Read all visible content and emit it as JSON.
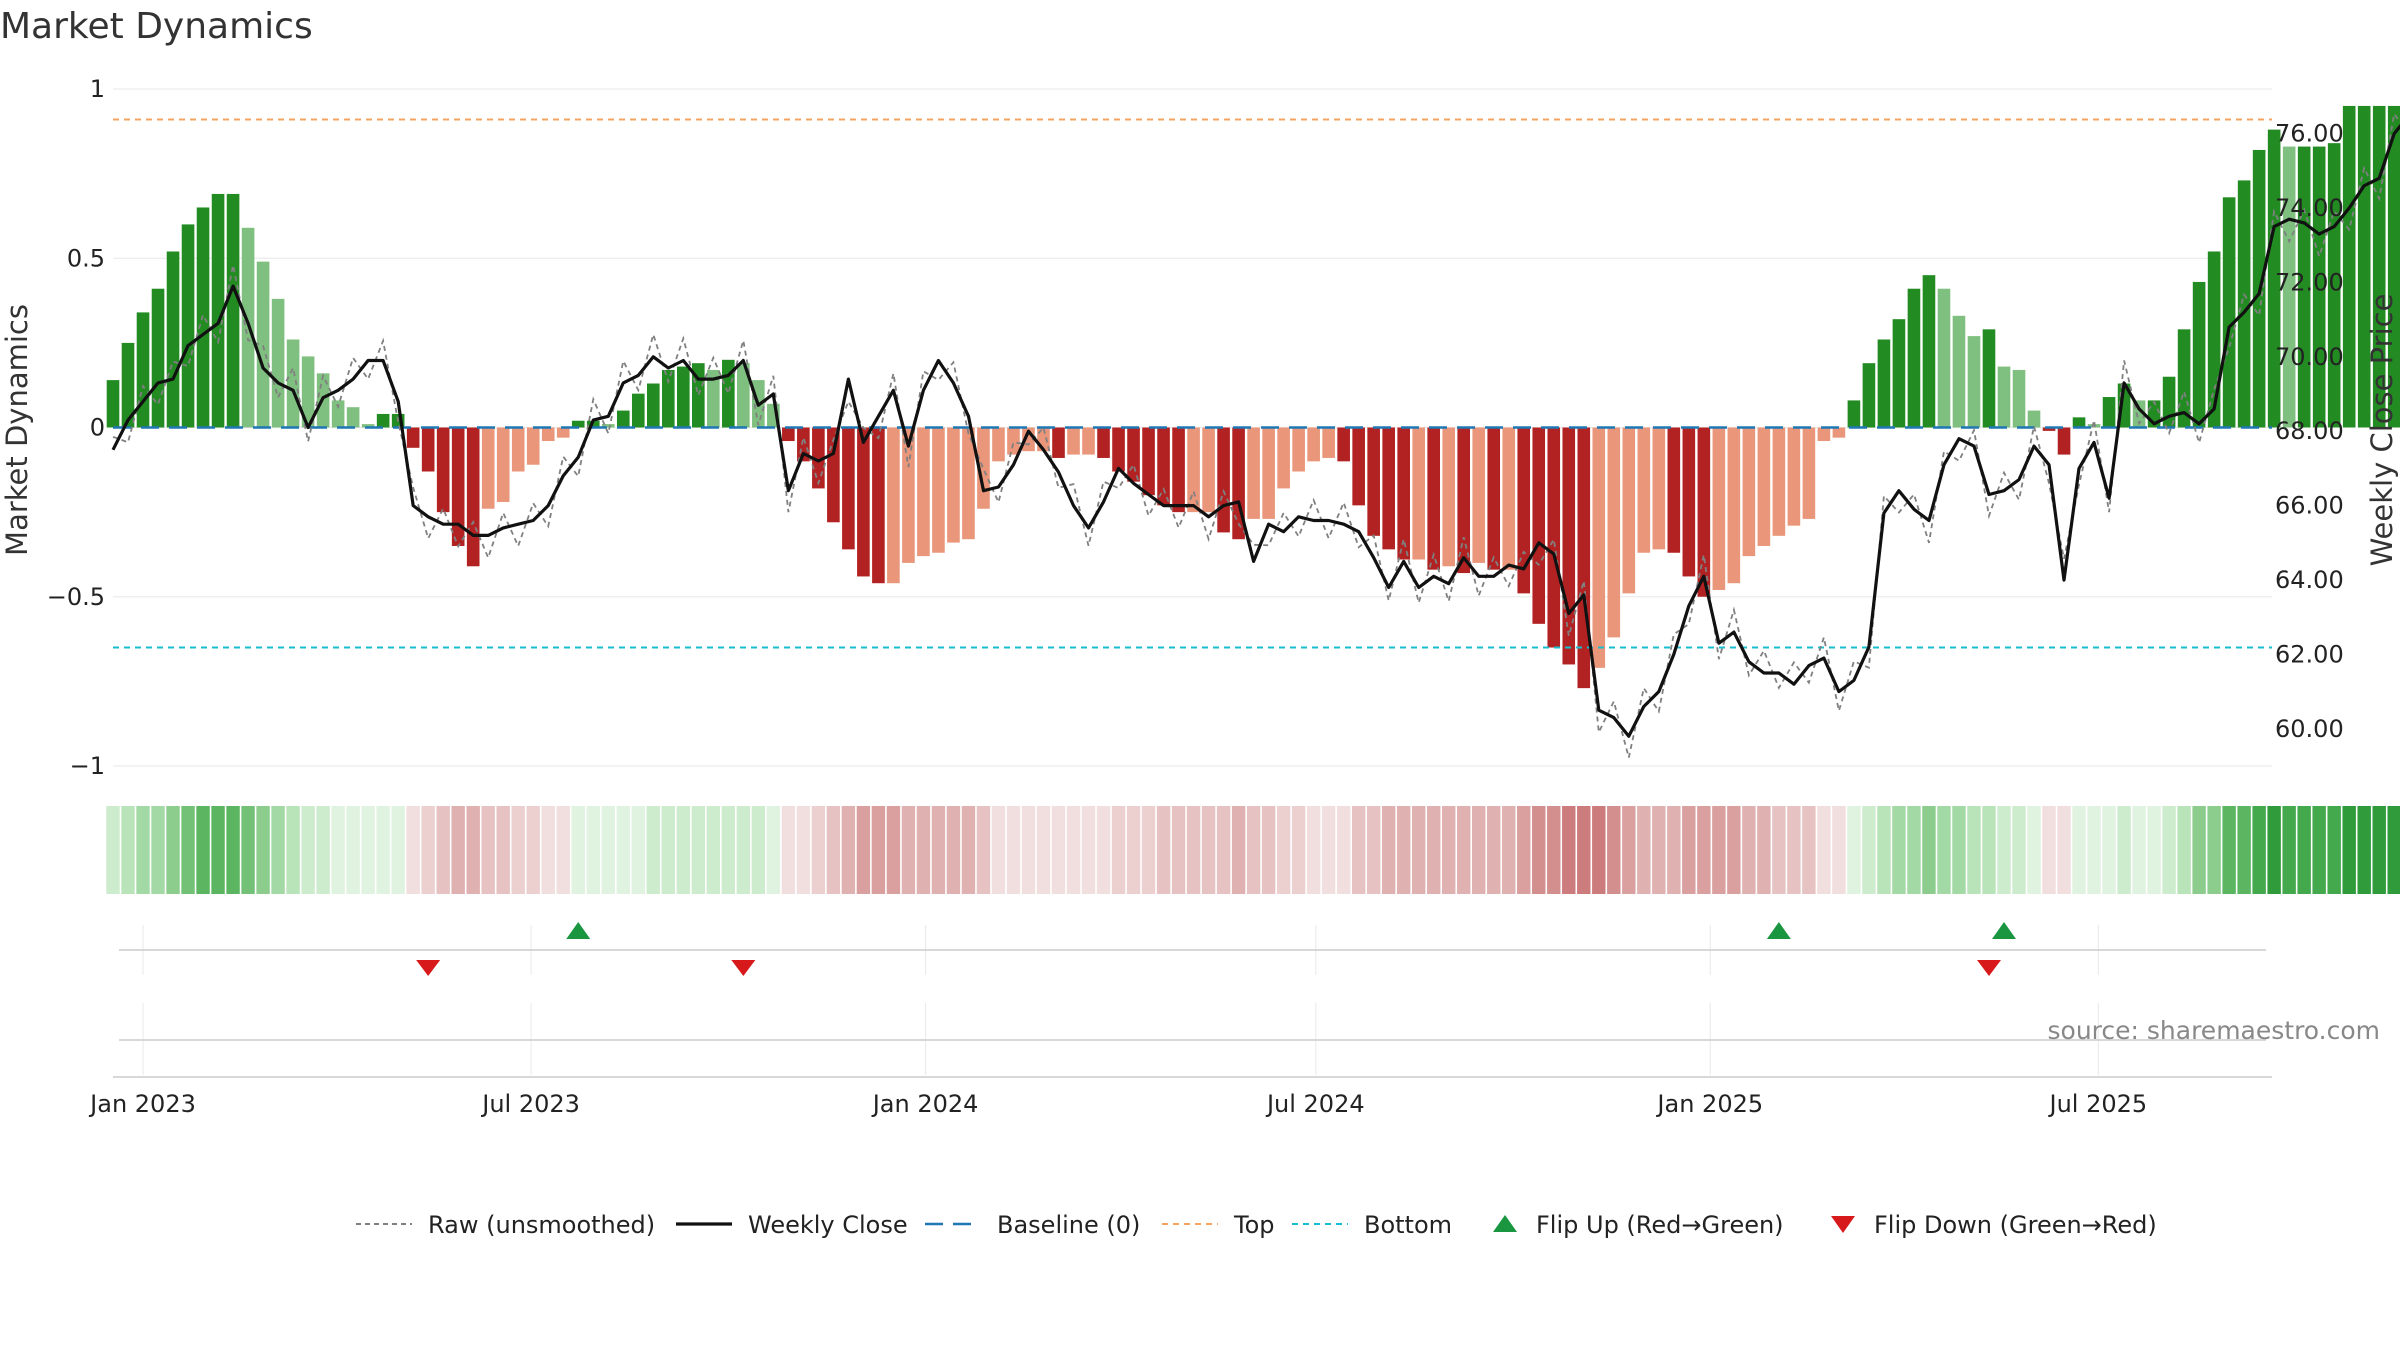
{
  "title": "Market Dynamics",
  "source": "source: sharemaestro.com",
  "colors": {
    "green_strong": "#228B22",
    "green_light": "#7FBF7F",
    "red_strong": "#B22222",
    "red_light": "#E9967A",
    "close_line": "#111111",
    "raw_line": "#808080",
    "baseline": "#1f77b4",
    "top": "#F4A460",
    "bottom": "#17becf",
    "flip_up": "#1a9641",
    "flip_down": "#d7191c"
  },
  "chart_data": {
    "type": "bar",
    "title": "Market Dynamics",
    "ylabel_left": "Market Dynamics",
    "ylabel_right": "Weekly Close Price",
    "ylim_left": [
      -1,
      1
    ],
    "ylim_right": [
      59.0,
      77.2
    ],
    "y_ticks_left": [
      "1",
      "0.5",
      "0",
      "−0.5",
      "−1"
    ],
    "y_tick_values_left": [
      1,
      0.5,
      0,
      -0.5,
      -1
    ],
    "y_ticks_right": [
      "76.00",
      "74.00",
      "72.00",
      "70.00",
      "68.00",
      "66.00",
      "64.00",
      "62.00",
      "60.00"
    ],
    "y_tick_values_right": [
      76,
      74,
      72,
      70,
      68,
      66,
      64,
      62,
      60
    ],
    "x_ticks": [
      "Jan 2023",
      "Jul 2023",
      "Jan 2024",
      "Jul 2024",
      "Jan 2025",
      "Jul 2025"
    ],
    "x_tick_dates": [
      "2023-01-01",
      "2023-07-01",
      "2024-01-01",
      "2024-07-01",
      "2025-01-01",
      "2025-07-01"
    ],
    "x_range": [
      "2022-12-18",
      "2025-09-20"
    ],
    "first_week": "2022-12-18",
    "top_level": 0.91,
    "bottom_level": -0.65,
    "baseline": 0,
    "legend": [
      "Raw (unsmoothed)",
      "Weekly Close",
      "Baseline (0)",
      "Top",
      "Bottom",
      "Flip Up (Red→Green)",
      "Flip Down (Green→Red)"
    ],
    "legend_position": "bottom",
    "dynamics": [
      0.14,
      0.25,
      0.34,
      0.41,
      0.52,
      0.6,
      0.65,
      0.69,
      0.69,
      0.59,
      0.49,
      0.38,
      0.26,
      0.21,
      0.16,
      0.08,
      0.06,
      0.01,
      0.04,
      0.04,
      -0.06,
      -0.13,
      -0.25,
      -0.35,
      -0.41,
      -0.24,
      -0.22,
      -0.13,
      -0.11,
      -0.04,
      -0.03,
      0.02,
      0.02,
      0.01,
      0.05,
      0.1,
      0.13,
      0.17,
      0.18,
      0.19,
      0.17,
      0.2,
      0.19,
      0.14,
      0.07,
      -0.04,
      -0.1,
      -0.18,
      -0.28,
      -0.36,
      -0.44,
      -0.46,
      -0.46,
      -0.4,
      -0.38,
      -0.37,
      -0.34,
      -0.33,
      -0.24,
      -0.1,
      -0.08,
      -0.07,
      -0.07,
      -0.09,
      -0.08,
      -0.08,
      -0.09,
      -0.13,
      -0.16,
      -0.2,
      -0.23,
      -0.25,
      -0.25,
      -0.25,
      -0.31,
      -0.33,
      -0.27,
      -0.27,
      -0.18,
      -0.13,
      -0.1,
      -0.09,
      -0.1,
      -0.23,
      -0.32,
      -0.36,
      -0.39,
      -0.39,
      -0.42,
      -0.41,
      -0.43,
      -0.4,
      -0.42,
      -0.42,
      -0.49,
      -0.58,
      -0.65,
      -0.7,
      -0.77,
      -0.71,
      -0.62,
      -0.49,
      -0.37,
      -0.36,
      -0.37,
      -0.44,
      -0.5,
      -0.48,
      -0.46,
      -0.38,
      -0.35,
      -0.32,
      -0.29,
      -0.27,
      -0.04,
      -0.03,
      0.08,
      0.19,
      0.26,
      0.32,
      0.41,
      0.45,
      0.41,
      0.33,
      0.27,
      0.29,
      0.18,
      0.17,
      0.05,
      -0.01,
      -0.08,
      0.03,
      0.01,
      0.09,
      0.13,
      0.08,
      0.08,
      0.15,
      0.29,
      0.43,
      0.52,
      0.68,
      0.73,
      0.82,
      0.88,
      0.83,
      0.83,
      0.83,
      0.84,
      0.95,
      0.95,
      0.95,
      0.95
    ],
    "close": [
      67.5,
      68.3,
      68.8,
      69.3,
      69.4,
      70.3,
      70.6,
      70.9,
      71.9,
      70.9,
      69.7,
      69.3,
      69.1,
      68.1,
      68.9,
      69.1,
      69.4,
      69.9,
      69.9,
      68.8,
      66.0,
      65.7,
      65.5,
      65.5,
      65.2,
      65.2,
      65.4,
      65.5,
      65.6,
      66.0,
      66.8,
      67.3,
      68.3,
      68.4,
      69.3,
      69.5,
      70.0,
      69.7,
      69.9,
      69.4,
      69.4,
      69.5,
      69.9,
      68.7,
      69.0,
      66.4,
      67.4,
      67.2,
      67.4,
      69.4,
      67.7,
      68.4,
      69.1,
      67.6,
      69.1,
      69.9,
      69.3,
      68.4,
      66.4,
      66.5,
      67.1,
      68.0,
      67.5,
      66.9,
      66.0,
      65.4,
      66.1,
      67.0,
      66.6,
      66.3,
      66.0,
      66.0,
      66.0,
      65.7,
      66.0,
      66.1,
      64.5,
      65.5,
      65.3,
      65.7,
      65.6,
      65.6,
      65.5,
      65.3,
      64.6,
      63.8,
      64.5,
      63.8,
      64.1,
      63.9,
      64.6,
      64.1,
      64.1,
      64.4,
      64.3,
      65.0,
      64.7,
      63.1,
      63.6,
      60.5,
      60.3,
      59.8,
      60.6,
      61.0,
      62.0,
      63.3,
      64.1,
      62.3,
      62.6,
      61.8,
      61.5,
      61.5,
      61.2,
      61.7,
      61.9,
      61.0,
      61.3,
      62.2,
      65.8,
      66.4,
      65.9,
      65.6,
      67.1,
      67.8,
      67.6,
      66.3,
      66.4,
      66.7,
      67.6,
      67.1,
      64.0,
      67.0,
      67.7,
      66.2,
      69.3,
      68.6,
      68.2,
      68.4,
      68.5,
      68.2,
      68.6,
      70.8,
      71.2,
      71.7,
      73.5,
      73.7,
      73.6,
      73.3,
      73.5,
      74.0,
      74.6,
      74.8,
      76.0,
      76.5,
      76.3,
      76.5
    ]
  },
  "heat_strip": {
    "colors": [
      "#73c178",
      "#76c27a",
      "#79c47d",
      "#7dc680",
      "#80c883",
      "#83c986",
      "#86cb89",
      "#89cd8c",
      "#8dcf8f",
      "#90d192",
      "#94d396",
      "#a5daa6",
      "#b6e0b6",
      "#c6e7c6",
      "#d6eed6",
      "#e6f3e6",
      "#e8ece8",
      "#ece8e8",
      "#ecd6d6",
      "#f0d0d0"
    ]
  },
  "flips": {
    "up": [
      "2023-07-23",
      "2025-02-02",
      "2025-05-18"
    ],
    "down": [
      "2023-05-14",
      "2023-10-08",
      "2025-05-11"
    ]
  }
}
